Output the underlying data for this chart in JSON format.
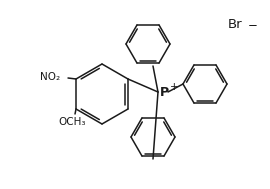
{
  "bg_color": "#ffffff",
  "line_color": "#1a1a1a",
  "line_width": 1.1,
  "font_size_label": 7.5,
  "font_size_br": 9.5,
  "Br_label": "Br",
  "Br_superscript": "−",
  "P_label": "P",
  "P_superscript": "+",
  "NO2_label": "NO₂",
  "OCH3_label": "OCH₃"
}
